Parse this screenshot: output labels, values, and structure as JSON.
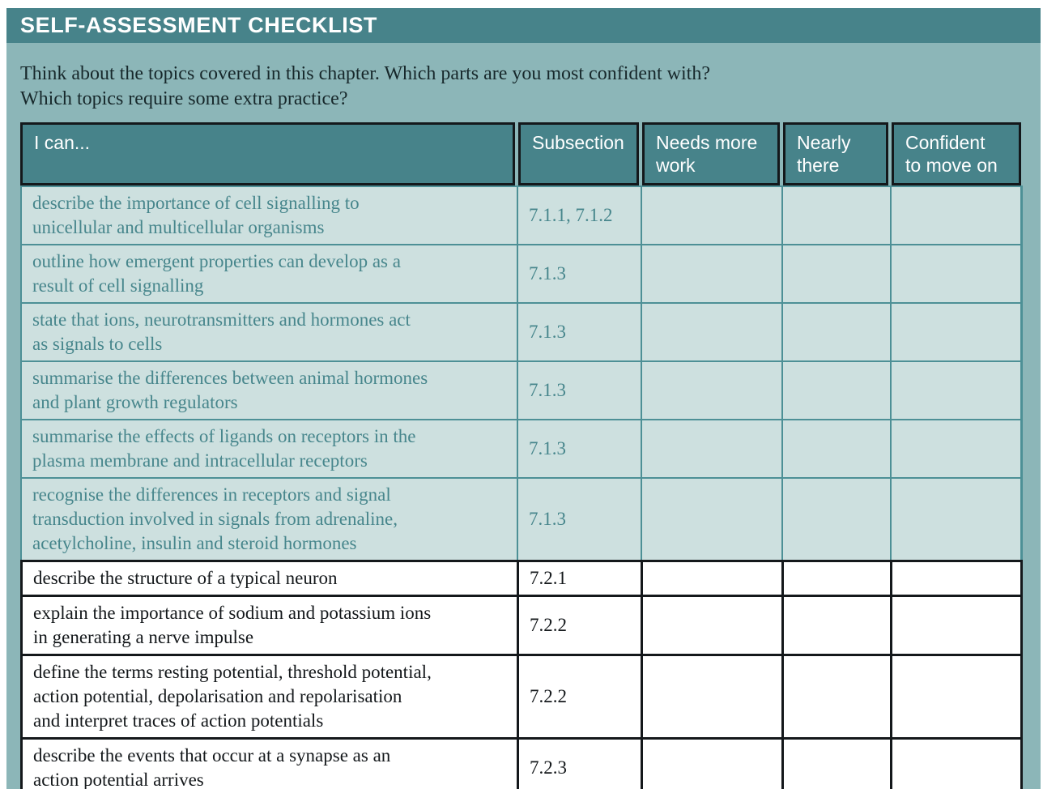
{
  "title": "SELF-ASSESSMENT CHECKLIST",
  "intro": "Think about the topics covered in this chapter. Which parts are you most confident with?\nWhich topics require some extra practice?",
  "table": {
    "columns": [
      "I can...",
      "Subsection",
      "Needs more\nwork",
      "Nearly\nthere",
      "Confident\nto move on"
    ],
    "rows": [
      {
        "skill": "describe the importance of cell signalling to\nunicellular and multicellular organisms",
        "subsection": "7.1.1, 7.1.2",
        "theme": "teal"
      },
      {
        "skill": "outline how emergent properties can develop as a\nresult of cell signalling",
        "subsection": "7.1.3",
        "theme": "teal"
      },
      {
        "skill": "state that ions, neurotransmitters and hormones act\nas signals to cells",
        "subsection": "7.1.3",
        "theme": "teal"
      },
      {
        "skill": "summarise the differences between animal hormones\nand plant growth regulators",
        "subsection": "7.1.3",
        "theme": "teal"
      },
      {
        "skill": "summarise the effects of ligands on receptors in the\nplasma membrane and intracellular receptors",
        "subsection": "7.1.3",
        "theme": "teal"
      },
      {
        "skill": "recognise the differences in receptors and signal\ntransduction involved in signals from adrenaline,\nacetylcholine, insulin and steroid hormones",
        "subsection": "7.1.3",
        "theme": "teal"
      },
      {
        "skill": "describe the structure of a typical neuron",
        "subsection": "7.2.1",
        "theme": "white"
      },
      {
        "skill": "explain the importance of sodium and potassium ions\nin generating a nerve impulse",
        "subsection": "7.2.2",
        "theme": "white"
      },
      {
        "skill": "define the terms resting potential, threshold potential,\naction potential, depolarisation and repolarisation\nand interpret traces of action potentials",
        "subsection": "7.2.2",
        "theme": "white"
      },
      {
        "skill": "describe the events that occur at a synapse as an\naction potential arrives",
        "subsection": "7.2.3",
        "theme": "white"
      }
    ]
  },
  "colors": {
    "teal": "#47838A",
    "card": "#8CB6B8",
    "rowbg": "#CDE0DF",
    "tealtext": "#47868C",
    "tealborder": "#4D9096",
    "ink": "#14181B",
    "introink": "#17282B"
  }
}
